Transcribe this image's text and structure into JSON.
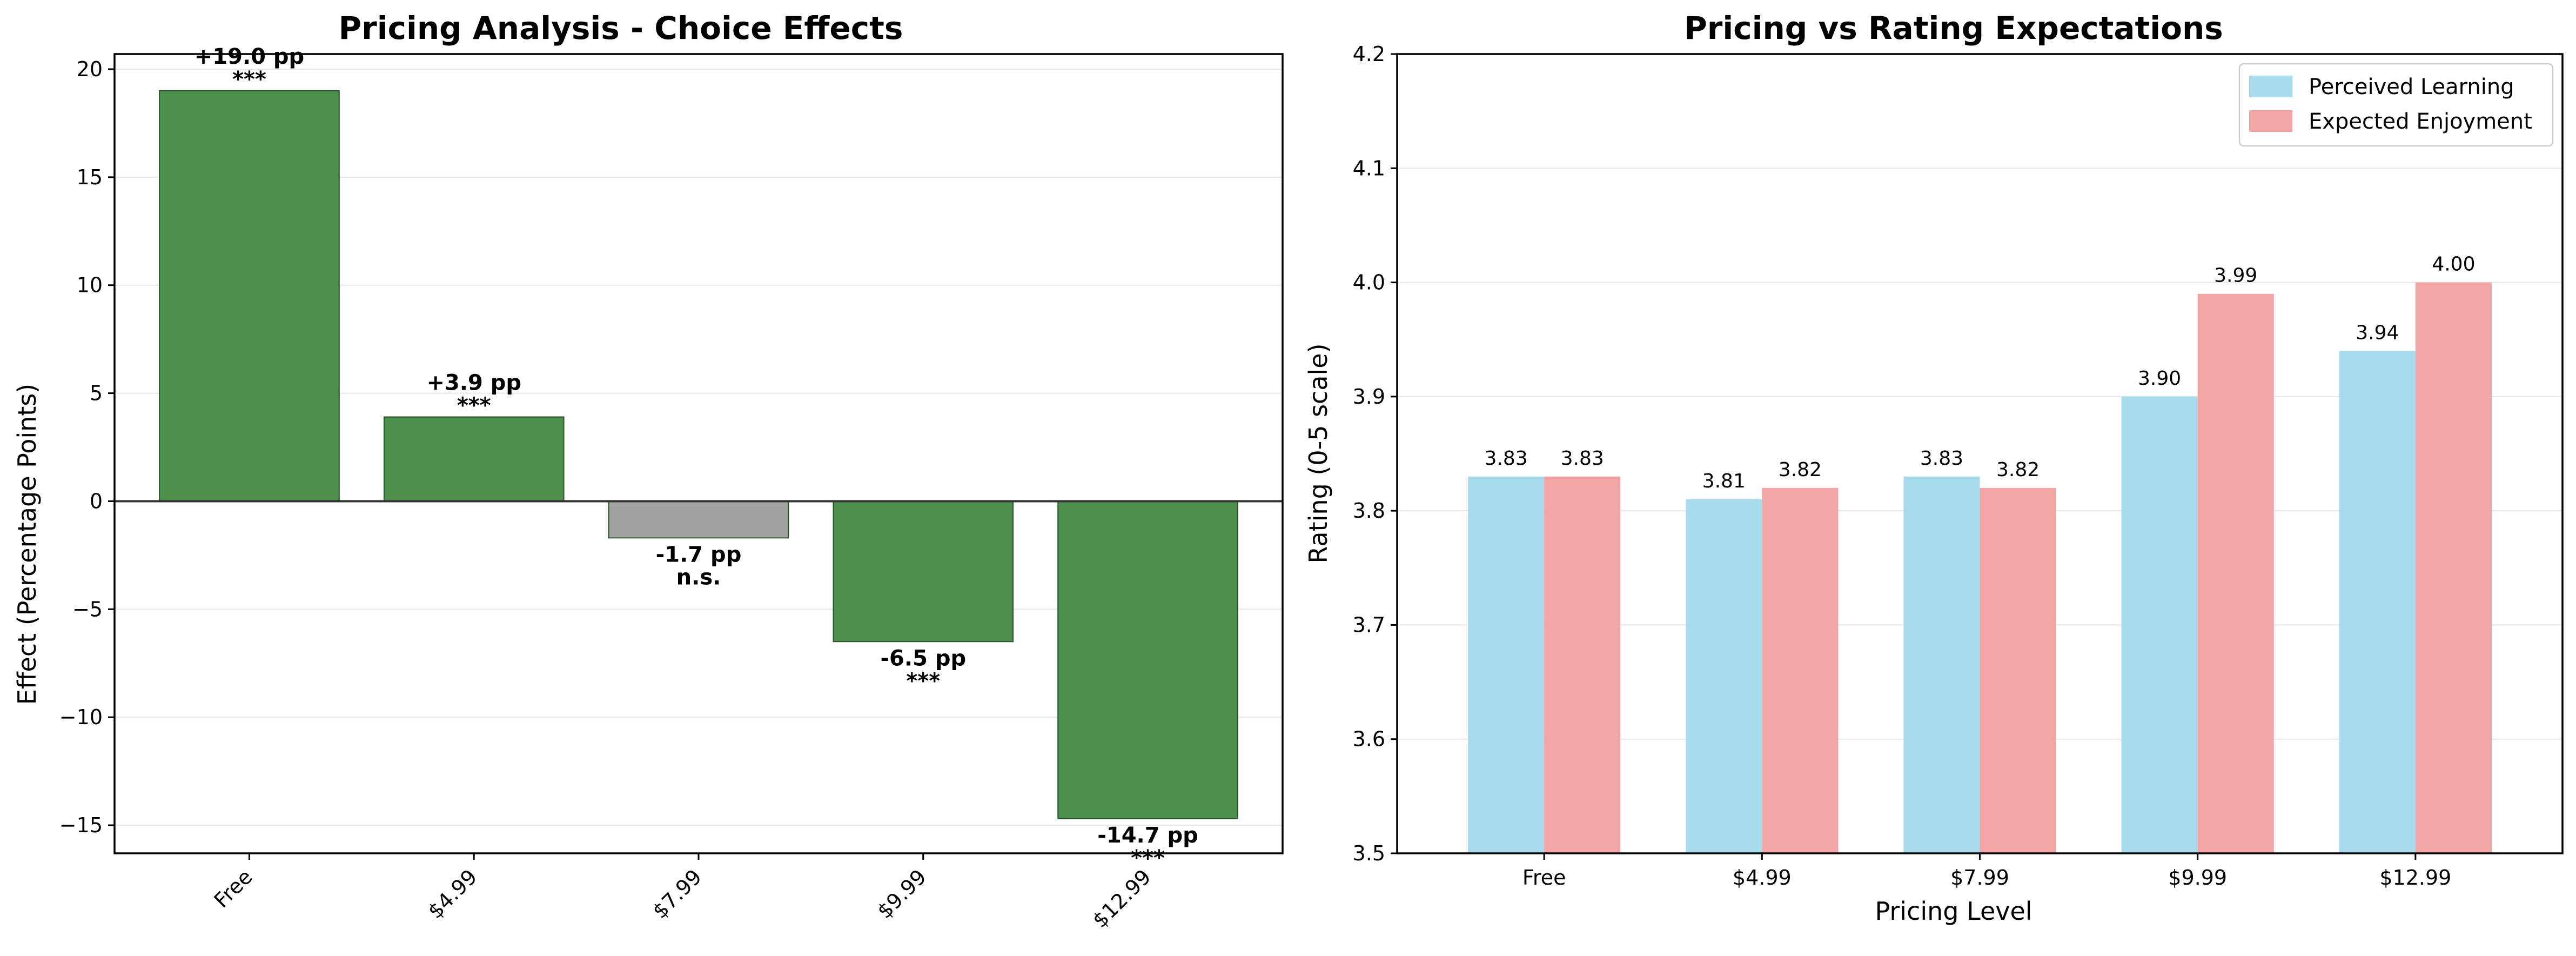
{
  "chart_data": [
    {
      "type": "bar",
      "title": "Pricing Analysis - Choice Effects",
      "xlabel": "",
      "ylabel": "Effect (Percentage Points)",
      "ylim": [
        -16.3,
        20.7
      ],
      "yticks": [
        -15,
        -10,
        -5,
        0,
        5,
        10,
        15,
        20
      ],
      "ytick_labels": [
        "−15",
        "−10",
        "−5",
        "0",
        "5",
        "10",
        "15",
        "20"
      ],
      "categories": [
        "Free",
        "$4.99",
        "$7.99",
        "$9.99",
        "$12.99"
      ],
      "values": [
        19.0,
        3.9,
        -1.7,
        -6.5,
        -14.7
      ],
      "value_labels": [
        "+19.0 pp",
        "+3.9 pp",
        "-1.7 pp",
        "-6.5 pp",
        "-14.7 pp"
      ],
      "significance": [
        "***",
        "***",
        "n.s.",
        "***",
        "***"
      ],
      "bar_colors": [
        "#4b904b",
        "#4b904b",
        "#a3a3a3",
        "#4b904b",
        "#4b904b"
      ],
      "grid": true,
      "zero_line": true,
      "xtick_rotation": 45
    },
    {
      "type": "bar",
      "title": "Pricing vs Rating Expectations",
      "xlabel": "Pricing Level",
      "ylabel": "Rating (0-5 scale)",
      "ylim": [
        3.5,
        4.2
      ],
      "yticks": [
        3.5,
        3.6,
        3.7,
        3.8,
        3.9,
        4.0,
        4.1,
        4.2
      ],
      "ytick_labels": [
        "3.5",
        "3.6",
        "3.7",
        "3.8",
        "3.9",
        "4.0",
        "4.1",
        "4.2"
      ],
      "categories": [
        "Free",
        "$4.99",
        "$7.99",
        "$9.99",
        "$12.99"
      ],
      "series": [
        {
          "name": "Perceived Learning",
          "values": [
            3.83,
            3.81,
            3.83,
            3.9,
            3.94
          ],
          "labels": [
            "3.83",
            "3.81",
            "3.83",
            "3.90",
            "3.94"
          ],
          "color": "#a8dbed"
        },
        {
          "name": "Expected Enjoyment",
          "values": [
            3.83,
            3.82,
            3.82,
            3.99,
            4.0
          ],
          "labels": [
            "3.83",
            "3.82",
            "3.82",
            "3.99",
            "4.00"
          ],
          "color": "#f2a5a5"
        }
      ],
      "grid": true,
      "legend": "top-right"
    }
  ]
}
